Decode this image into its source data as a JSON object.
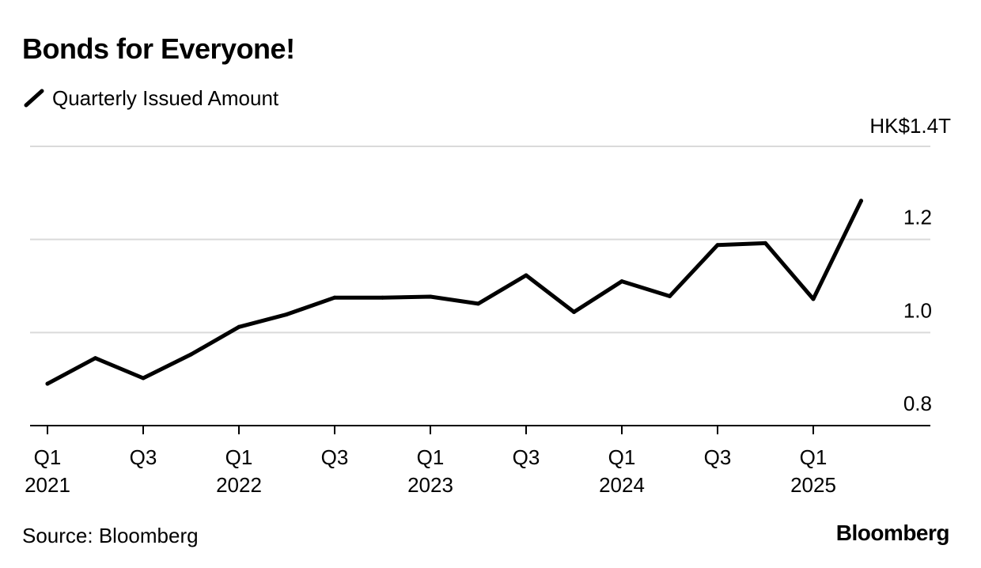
{
  "chart_data": {
    "type": "line",
    "title": "Bonds for Everyone!",
    "x": [
      "Q1 2021",
      "Q2 2021",
      "Q3 2021",
      "Q4 2021",
      "Q1 2022",
      "Q2 2022",
      "Q3 2022",
      "Q4 2022",
      "Q1 2023",
      "Q2 2023",
      "Q3 2023",
      "Q4 2023",
      "Q1 2024",
      "Q2 2024",
      "Q3 2024",
      "Q4 2024",
      "Q1 2025",
      "Q2 2025"
    ],
    "tick_labels": [
      {
        "quarter": "Q1",
        "year": "2021"
      },
      {
        "quarter": "Q3",
        "year": ""
      },
      {
        "quarter": "Q1",
        "year": "2022"
      },
      {
        "quarter": "Q3",
        "year": ""
      },
      {
        "quarter": "Q1",
        "year": "2023"
      },
      {
        "quarter": "Q3",
        "year": ""
      },
      {
        "quarter": "Q1",
        "year": "2024"
      },
      {
        "quarter": "Q3",
        "year": ""
      },
      {
        "quarter": "Q1",
        "year": "2025"
      }
    ],
    "series": [
      {
        "name": "Quarterly Issued Amount",
        "color": "#000000",
        "values": [
          0.89,
          0.945,
          0.902,
          0.953,
          1.012,
          1.039,
          1.075,
          1.075,
          1.077,
          1.062,
          1.123,
          1.044,
          1.11,
          1.078,
          1.188,
          1.192,
          1.072,
          1.283
        ]
      }
    ],
    "ylim": [
      0.8,
      1.4
    ],
    "y_ticks": [
      0.8,
      1.0,
      1.2,
      1.4
    ],
    "y_tick_labels": [
      "0.8",
      "1.0",
      "1.2",
      "HK$1.4T"
    ],
    "y_axis_side": "right",
    "grid": true,
    "legend_position": "top-left"
  },
  "footer": {
    "source": "Source: Bloomberg",
    "brand": "Bloomberg"
  }
}
